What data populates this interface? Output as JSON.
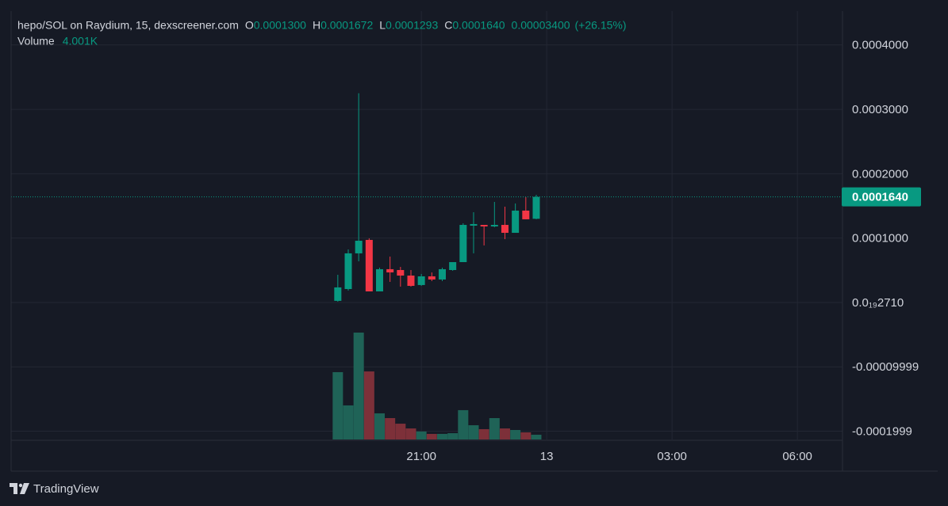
{
  "chart_data": {
    "type": "candlestick",
    "header": {
      "symbol": "hepo/SOL on Raydium, 15, dexscreener.com",
      "fields": [
        {
          "key": "O",
          "value": 0.00013,
          "label": "0.0001300"
        },
        {
          "key": "H",
          "value": 0.0001672,
          "label": "0.0001672"
        },
        {
          "key": "L",
          "value": 0.0001293,
          "label": "0.0001293"
        },
        {
          "key": "C",
          "value": 0.000164,
          "label": "0.0001640"
        }
      ],
      "change": {
        "value": 3.4e-05,
        "label": "0.00003400"
      },
      "change_pct": {
        "value": 26.15,
        "label": "(+26.15%)"
      },
      "volume_title": "Volume",
      "volume": {
        "value": 4001,
        "label": "4.001K"
      }
    },
    "x": [
      19,
      19.25,
      19.5,
      19.75,
      20,
      20.25,
      20.5,
      20.75,
      21,
      21.25,
      21.5,
      21.75,
      22,
      22.25,
      22.5,
      22.75,
      23,
      23.25,
      23.5,
      23.75
    ],
    "open": [
      2.5e-06,
      2.09e-05,
      7.63e-05,
      9.72e-05,
      1.72e-05,
      5.17e-05,
      5.04e-05,
      4.18e-05,
      2.71e-05,
      4.06e-05,
      3.57e-05,
      5.04e-05,
      6.27e-05,
      0.0001193,
      0.0001205,
      0.0001181,
      0.0001205,
      0.0001082,
      0.0001427,
      0.00013
    ],
    "high": [
      4.3e-05,
      8.24e-05,
      0.000325,
      9.96e-05,
      5.41e-05,
      7.13e-05,
      5.53e-05,
      5.04e-05,
      4.43e-05,
      4.67e-05,
      5.41e-05,
      6.27e-05,
      0.000123,
      0.0001402,
      0.0001205,
      0.0001562,
      0.0001488,
      0.0001538,
      0.0001636,
      0.0001672
    ],
    "low": [
      1.2e-06,
      1.85e-05,
      6.4e-05,
      1.72e-05,
      1.72e-05,
      3.2e-05,
      2.46e-05,
      2.46e-05,
      2.58e-05,
      3.32e-05,
      3.32e-05,
      4.92e-05,
      6.27e-05,
      7.63e-05,
      8.86e-05,
      0.0001169,
      9.84e-05,
      0.0001082,
      0.0001292,
      0.0001293
    ],
    "close": [
      2.34e-05,
      7.63e-05,
      9.59e-05,
      1.72e-05,
      5.17e-05,
      4.67e-05,
      4.18e-05,
      2.58e-05,
      4.06e-05,
      3.57e-05,
      5.17e-05,
      6.27e-05,
      0.0001205,
      0.0001218,
      0.0001181,
      0.0001205,
      0.0001082,
      0.0001427,
      0.0001292,
      0.000164
    ],
    "volume": [
      56700,
      28700,
      90000,
      57300,
      22000,
      18000,
      13300,
      9300,
      6700,
      4700,
      4700,
      5300,
      24700,
      12000,
      8700,
      18000,
      9300,
      8000,
      6000,
      4001
    ],
    "up_color": "#089981",
    "down_color": "#f23645",
    "volume_up_color": "#1f6357",
    "volume_down_color": "#7d3039",
    "xlim": [
      11.18,
      31.08
    ],
    "xticks": [
      {
        "value": 21,
        "label": "21:00"
      },
      {
        "value": 24,
        "label": "13"
      },
      {
        "value": 27,
        "label": "03:00"
      },
      {
        "value": 30,
        "label": "06:00"
      }
    ],
    "ylim": [
      -0.0002128,
      0.0004526
    ],
    "yticks": [
      {
        "value": 0.0004,
        "label": "0.0004000"
      },
      {
        "value": 0.0003,
        "label": "0.0003000"
      },
      {
        "value": 0.0002,
        "label": "0.0002000"
      },
      {
        "value": 0.0001,
        "label": "0.0001000"
      },
      {
        "value": 2.71e-20,
        "label": "0.0₁₉2710"
      },
      -9.999e-05,
      -0.0001999
    ],
    "vlim": [
      0,
      360700
    ],
    "grid": true,
    "last_price": {
      "value": 0.000164,
      "label": "0.0001640"
    },
    "footer": "TradingView"
  }
}
